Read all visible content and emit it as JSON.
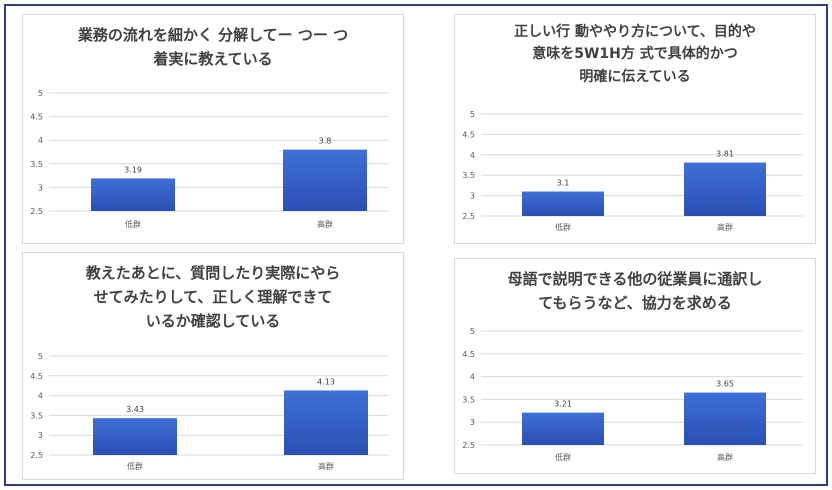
{
  "colors": {
    "bar_top": "#3f6fd8",
    "bar_bottom": "#2a4fb5",
    "grid": "#d9d9d9",
    "frame": "#2f3f86"
  },
  "chart_data": [
    {
      "type": "bar",
      "title": "業務の流れを細かく 分解してー つー つ\n着実に教えている",
      "categories": [
        "低群",
        "高群"
      ],
      "values": [
        3.19,
        3.8
      ],
      "ylim": [
        2.5,
        5
      ],
      "yticks": [
        "2.5",
        "3",
        "3.5",
        "4",
        "4.5",
        "5"
      ],
      "grid": true
    },
    {
      "type": "bar",
      "title": "正しい行 動ややり方について、目的や\n意味を5W1H方 式で具体的かつ\n明確に伝えている",
      "categories": [
        "低群",
        "高群"
      ],
      "values": [
        3.1,
        3.81
      ],
      "ylim": [
        2.5,
        5
      ],
      "yticks": [
        "2.5",
        "3",
        "3.5",
        "4",
        "4.5",
        "5"
      ],
      "grid": true
    },
    {
      "type": "bar",
      "title": "教えたあとに、質問したり実際にやら\nせてみたりして、正しく理解できて\nいるか確認している",
      "categories": [
        "低群",
        "高群"
      ],
      "values": [
        3.43,
        4.13
      ],
      "ylim": [
        2.5,
        5
      ],
      "yticks": [
        "2.5",
        "3",
        "3.5",
        "4",
        "4.5",
        "5"
      ],
      "grid": true
    },
    {
      "type": "bar",
      "title": "母語で説明できる他の従業員に通訳し\nてもらうなど、協力を求める",
      "categories": [
        "低群",
        "高群"
      ],
      "values": [
        3.21,
        3.65
      ],
      "ylim": [
        2.5,
        5
      ],
      "yticks": [
        "2.5",
        "3",
        "3.5",
        "4",
        "4.5",
        "5"
      ],
      "grid": true
    }
  ]
}
